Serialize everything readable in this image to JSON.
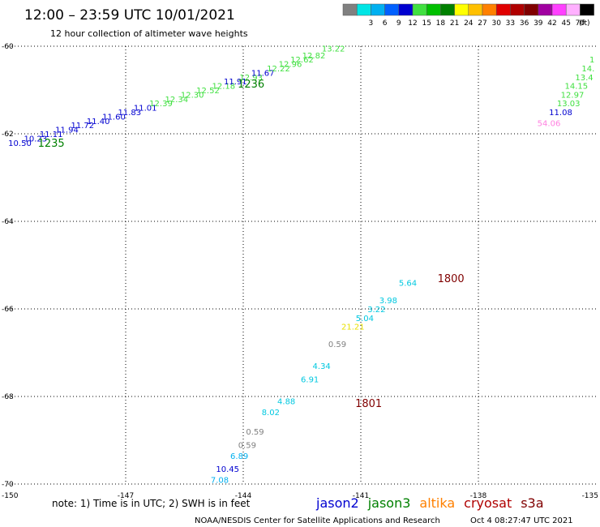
{
  "header": {
    "title": "12:00 – 23:59 UTC 10/01/2021",
    "subtitle": "12 hour collection of altimeter wave heights"
  },
  "colorbar": {
    "unit": "(ft)",
    "swatches": [
      {
        "label": "",
        "color": "#808080"
      },
      {
        "label": "3",
        "color": "#00e5e5"
      },
      {
        "label": "6",
        "color": "#00b0f0"
      },
      {
        "label": "9",
        "color": "#0060ff"
      },
      {
        "label": "12",
        "color": "#0000d0"
      },
      {
        "label": "15",
        "color": "#40e040"
      },
      {
        "label": "18",
        "color": "#00c000"
      },
      {
        "label": "21",
        "color": "#008000"
      },
      {
        "label": "24",
        "color": "#ffff00"
      },
      {
        "label": "27",
        "color": "#ffc000"
      },
      {
        "label": "30",
        "color": "#ff8000"
      },
      {
        "label": "33",
        "color": "#e00000"
      },
      {
        "label": "36",
        "color": "#b00000"
      },
      {
        "label": "39",
        "color": "#800000"
      },
      {
        "label": "42",
        "color": "#a000a0"
      },
      {
        "label": "45",
        "color": "#ff40ff"
      },
      {
        "label": "70",
        "color": "#ffb0ff"
      },
      {
        "label": "",
        "color": "#000000"
      }
    ]
  },
  "map": {
    "lon_range": [
      -150,
      -135
    ],
    "lat_range": [
      -70,
      -60
    ],
    "lon_ticks": [
      "-150",
      "-147",
      "-144",
      "-141",
      "-138",
      "-135"
    ],
    "lat_ticks": [
      "-60",
      "-62",
      "-64",
      "-66",
      "-68",
      "-70"
    ],
    "gridlines": true
  },
  "chart_data": {
    "type": "scatter",
    "x_range": [
      -150,
      -135
    ],
    "y_range": [
      -70,
      -60
    ],
    "points": [
      {
        "lon": -149.7,
        "lat": -62.2,
        "text": "10.50",
        "color": "#0000d0"
      },
      {
        "lon": -149.3,
        "lat": -62.1,
        "text": "10.23",
        "color": "#0000d0"
      },
      {
        "lon": -148.9,
        "lat": -62.0,
        "text": "11.11",
        "color": "#0000d0"
      },
      {
        "lon": -148.5,
        "lat": -61.9,
        "text": "11.94",
        "color": "#0000d0"
      },
      {
        "lon": -148.1,
        "lat": -61.8,
        "text": "11.72",
        "color": "#0000d0"
      },
      {
        "lon": -147.7,
        "lat": -61.7,
        "text": "11.40",
        "color": "#0000d0"
      },
      {
        "lon": -147.3,
        "lat": -61.6,
        "text": "11.60",
        "color": "#0000d0"
      },
      {
        "lon": -146.9,
        "lat": -61.5,
        "text": "11.83",
        "color": "#0000d0"
      },
      {
        "lon": -146.5,
        "lat": -61.4,
        "text": "11.01",
        "color": "#0000d0"
      },
      {
        "lon": -146.1,
        "lat": -61.3,
        "text": "12.39",
        "color": "#40e040"
      },
      {
        "lon": -145.7,
        "lat": -61.2,
        "text": "12.34",
        "color": "#40e040"
      },
      {
        "lon": -145.3,
        "lat": -61.1,
        "text": "12.30",
        "color": "#40e040"
      },
      {
        "lon": -144.9,
        "lat": -61.0,
        "text": "12.52",
        "color": "#40e040"
      },
      {
        "lon": -144.5,
        "lat": -60.9,
        "text": "12.18",
        "color": "#40e040"
      },
      {
        "lon": -144.2,
        "lat": -60.8,
        "text": "11.91",
        "color": "#0000d0"
      },
      {
        "lon": -143.8,
        "lat": -60.7,
        "text": "12.93",
        "color": "#40e040"
      },
      {
        "lon": -143.5,
        "lat": -60.6,
        "text": "11.67",
        "color": "#0000d0"
      },
      {
        "lon": -143.1,
        "lat": -60.5,
        "text": "12.22",
        "color": "#40e040"
      },
      {
        "lon": -142.8,
        "lat": -60.4,
        "text": "12.96",
        "color": "#40e040"
      },
      {
        "lon": -142.5,
        "lat": -60.3,
        "text": "12.62",
        "color": "#40e040"
      },
      {
        "lon": -142.2,
        "lat": -60.2,
        "text": "12.82",
        "color": "#40e040"
      },
      {
        "lon": -141.7,
        "lat": -60.05,
        "text": "13.22",
        "color": "#40e040"
      },
      {
        "lon": -135.1,
        "lat": -60.3,
        "text": "1",
        "color": "#40e040"
      },
      {
        "lon": -135.2,
        "lat": -60.5,
        "text": "14.",
        "color": "#40e040"
      },
      {
        "lon": -135.3,
        "lat": -60.7,
        "text": "13.4",
        "color": "#40e040"
      },
      {
        "lon": -135.5,
        "lat": -60.9,
        "text": "14.15",
        "color": "#40e040"
      },
      {
        "lon": -135.6,
        "lat": -61.1,
        "text": "12.97",
        "color": "#40e040"
      },
      {
        "lon": -135.7,
        "lat": -61.3,
        "text": "13.03",
        "color": "#40e040"
      },
      {
        "lon": -135.9,
        "lat": -61.5,
        "text": "11.08",
        "color": "#0000d0"
      },
      {
        "lon": -136.2,
        "lat": -61.75,
        "text": "54.06",
        "color": "#ff80e0"
      },
      {
        "lon": -139.8,
        "lat": -65.4,
        "text": "5.64",
        "color": "#00c8e0"
      },
      {
        "lon": -140.3,
        "lat": -65.8,
        "text": "3.98",
        "color": "#00c8e0"
      },
      {
        "lon": -140.6,
        "lat": -66.0,
        "text": "3.22",
        "color": "#00c8e0"
      },
      {
        "lon": -140.9,
        "lat": -66.2,
        "text": "5.04",
        "color": "#00c8e0"
      },
      {
        "lon": -141.2,
        "lat": -66.4,
        "text": "21.21",
        "color": "#e8e000"
      },
      {
        "lon": -141.6,
        "lat": -66.8,
        "text": "0.59",
        "color": "#808080"
      },
      {
        "lon": -142.0,
        "lat": -67.3,
        "text": "4.34",
        "color": "#00c8e0"
      },
      {
        "lon": -142.3,
        "lat": -67.6,
        "text": "6.91",
        "color": "#00c8e0"
      },
      {
        "lon": -142.9,
        "lat": -68.1,
        "text": "4.88",
        "color": "#00c8e0"
      },
      {
        "lon": -143.3,
        "lat": -68.35,
        "text": "8.02",
        "color": "#00c8e0"
      },
      {
        "lon": -143.7,
        "lat": -68.8,
        "text": "0.59",
        "color": "#808080"
      },
      {
        "lon": -143.9,
        "lat": -69.1,
        "text": "0.59",
        "color": "#808080"
      },
      {
        "lon": -144.1,
        "lat": -69.35,
        "text": "6.89",
        "color": "#00b0f0"
      },
      {
        "lon": -144.4,
        "lat": -69.65,
        "text": "10.45",
        "color": "#0000d0"
      },
      {
        "lon": -144.6,
        "lat": -69.9,
        "text": "7.08",
        "color": "#00b0f0"
      }
    ],
    "time_labels": [
      {
        "lon": -148.9,
        "lat": -62.2,
        "text": "1235",
        "color": "#008000"
      },
      {
        "lon": -143.8,
        "lat": -60.85,
        "text": "1236",
        "color": "#008000"
      },
      {
        "lon": -138.7,
        "lat": -65.3,
        "text": "1800",
        "color": "#800000"
      },
      {
        "lon": -140.8,
        "lat": -68.15,
        "text": "1801",
        "color": "#800000"
      }
    ]
  },
  "footer": {
    "note": "note:  1) Time is in UTC;  2) SWH is in feet",
    "legend": [
      {
        "label": "jason2",
        "color": "#0000d0"
      },
      {
        "label": "jason3",
        "color": "#008000"
      },
      {
        "label": "altika",
        "color": "#ff8000"
      },
      {
        "label": "cryosat",
        "color": "#b00000"
      },
      {
        "label": "s3a",
        "color": "#800000"
      }
    ],
    "credit": "NOAA/NESDIS Center for Satellite Applications and Research",
    "timestamp": "Oct  4 08:27:47 UTC 2021"
  }
}
